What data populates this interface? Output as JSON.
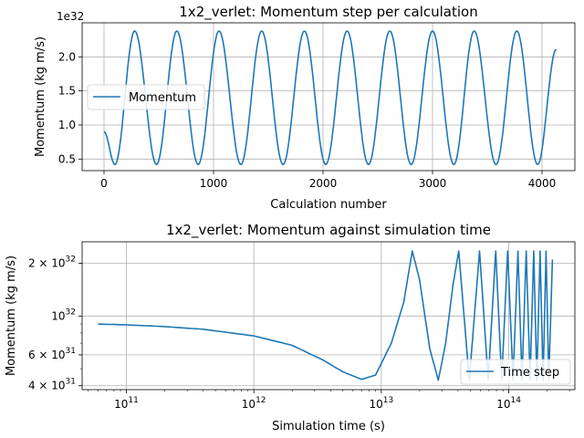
{
  "chart_data": [
    {
      "type": "line",
      "title": "1x2_verlet: Momentum step per calculation",
      "xlabel": "Calculation number",
      "ylabel": "Momentum (kg m/s)",
      "offset_text": "1e32",
      "xlim": [
        -200,
        4300
      ],
      "ylim": [
        0.33,
        2.5
      ],
      "xticks": [
        0,
        1000,
        2000,
        3000,
        4000
      ],
      "xtick_labels": [
        "0",
        "1000",
        "2000",
        "3000",
        "4000"
      ],
      "yticks": [
        0.5,
        1.0,
        1.5,
        2.0
      ],
      "ytick_labels": [
        "0.5",
        "1.0",
        "1.5",
        "2.0"
      ],
      "grid": true,
      "legend": {
        "position": "center-left",
        "entries": [
          "Momentum"
        ]
      },
      "series": [
        {
          "name": "Momentum",
          "color": "#1f77b4",
          "x_start": 0,
          "x_end": 4130,
          "initial_value": 0.9,
          "final_value": 2.11,
          "min": 0.42,
          "max": 2.38,
          "peak_x": [
            280,
            665,
            1050,
            1440,
            1830,
            2220,
            2610,
            3000,
            3380,
            3770
          ],
          "trough_x": [
            100,
            480,
            860,
            1250,
            1635,
            2025,
            2415,
            2805,
            3195,
            3580,
            3960
          ]
        }
      ]
    },
    {
      "type": "line",
      "title": "1x2_verlet: Momentum against simulation time",
      "xlabel": "Simulation time (s)",
      "ylabel": "Momentum (kg m/s)",
      "xscale": "log",
      "yscale": "log",
      "xlim": [
        45000000000.0,
        330000000000000.0
      ],
      "ylim": [
        3.8e+31,
        2.65e+32
      ],
      "xticks": [
        100000000000.0,
        1000000000000.0,
        10000000000000.0,
        100000000000000.0
      ],
      "xtick_labels": [
        {
          "base": "10",
          "exp": "11"
        },
        {
          "base": "10",
          "exp": "12"
        },
        {
          "base": "10",
          "exp": "13"
        },
        {
          "base": "10",
          "exp": "14"
        }
      ],
      "yticks": [
        4e+31,
        6e+31,
        1e+32,
        2e+32
      ],
      "ytick_labels": [
        {
          "base": "4 × 10",
          "exp": "31"
        },
        {
          "base": "6 × 10",
          "exp": "31"
        },
        {
          "base": "10",
          "exp": "32"
        },
        {
          "base": "2 × 10",
          "exp": "32"
        }
      ],
      "grid": true,
      "legend": {
        "position": "lower-right",
        "entries": [
          "Time step"
        ]
      },
      "series": [
        {
          "name": "Time step",
          "color": "#1f77b4",
          "points": [
            [
              60000000000.0,
              9e+31
            ],
            [
              100000000000.0,
              8.9e+31
            ],
            [
              200000000000.0,
              8.7e+31
            ],
            [
              400000000000.0,
              8.4e+31
            ],
            [
              1000000000000.0,
              7.7e+31
            ],
            [
              2000000000000.0,
              6.8e+31
            ],
            [
              3500000000000.0,
              5.6e+31
            ],
            [
              5000000000000.0,
              4.8e+31
            ],
            [
              7000000000000.0,
              4.35e+31
            ],
            [
              9000000000000.0,
              4.6e+31
            ],
            [
              12000000000000.0,
              7e+31
            ],
            [
              15000000000000.0,
              1.2e+32
            ],
            [
              17500000000000.0,
              2.35e+32
            ],
            [
              20000000000000.0,
              1.6e+32
            ],
            [
              24000000000000.0,
              6.5e+31
            ],
            [
              28000000000000.0,
              4.3e+31
            ],
            [
              32000000000000.0,
              7e+31
            ],
            [
              36500000000000.0,
              1.5e+32
            ],
            [
              40500000000000.0,
              2.35e+32
            ]
          ],
          "spikes": {
            "peaks_x": [
              59000000000000.0,
              79000000000000.0,
              98000000000000.0,
              118000000000000.0,
              137000000000000.0,
              157000000000000.0,
              176000000000000.0,
              196000000000000.0
            ],
            "troughs_x": [
              49000000000000.0,
              69000000000000.0,
              88000000000000.0,
              108000000000000.0,
              127000000000000.0,
              147000000000000.0,
              166000000000000.0,
              186000000000000.0,
              206000000000000.0
            ],
            "peak_value": 2.35e+32,
            "trough_value": 4.3e+31,
            "final_x": 220000000000000.0,
            "final_value": 2.1e+32
          }
        }
      ]
    }
  ]
}
